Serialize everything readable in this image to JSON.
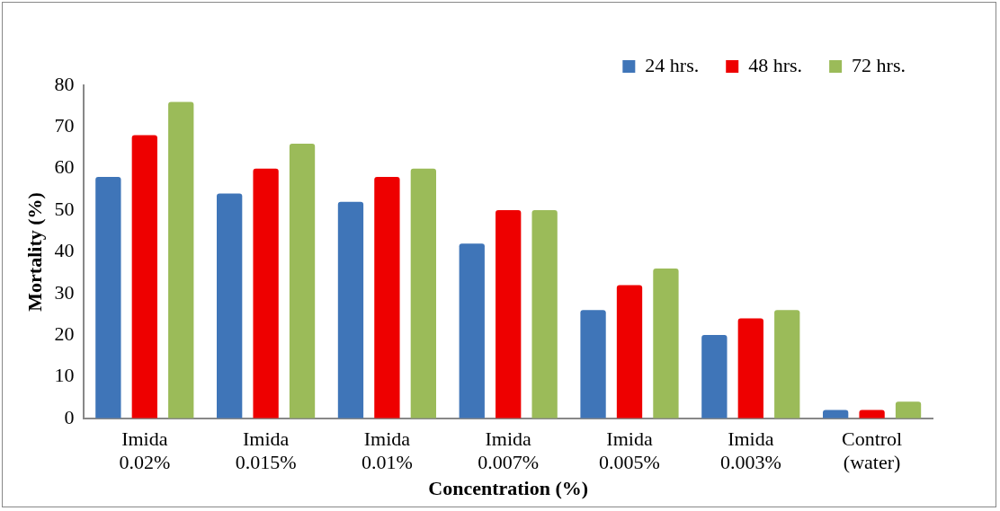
{
  "chart_data": {
    "type": "bar",
    "xlabel": "Concentration (%)",
    "ylabel": "Mortality (%)",
    "categories": [
      "Imida 0.02%",
      "Imida 0.015%",
      "Imida 0.01%",
      "Imida 0.007%",
      "Imida 0.005%",
      "Imida 0.003%",
      "Control (water)"
    ],
    "series": [
      {
        "name": "24 hrs.",
        "color": "#3f75b8",
        "values": [
          58,
          54,
          52,
          42,
          26,
          20,
          2
        ]
      },
      {
        "name": "48 hrs.",
        "color": "#ee0000",
        "values": [
          68,
          60,
          58,
          50,
          32,
          24,
          2
        ]
      },
      {
        "name": "72 hrs.",
        "color": "#9bbb59",
        "values": [
          76,
          66,
          60,
          50,
          36,
          26,
          4
        ]
      }
    ],
    "ylim": [
      0,
      80
    ],
    "yticks": [
      0,
      10,
      20,
      30,
      40,
      50,
      60,
      70,
      80
    ],
    "grid": false,
    "legend": "top right"
  }
}
